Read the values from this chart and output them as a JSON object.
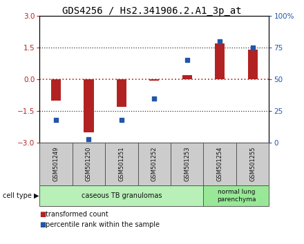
{
  "title": "GDS4256 / Hs2.341906.2.A1_3p_at",
  "samples": [
    "GSM501249",
    "GSM501250",
    "GSM501251",
    "GSM501252",
    "GSM501253",
    "GSM501254",
    "GSM501255"
  ],
  "red_bars": [
    -1.0,
    -2.5,
    -1.3,
    -0.05,
    0.2,
    1.7,
    1.4
  ],
  "blue_dots": [
    18,
    3,
    18,
    35,
    65,
    80,
    75
  ],
  "ylim_left": [
    -3,
    3
  ],
  "ylim_right": [
    0,
    100
  ],
  "yticks_left": [
    -3,
    -1.5,
    0,
    1.5,
    3
  ],
  "yticks_right": [
    0,
    25,
    50,
    75,
    100
  ],
  "ytick_labels_right": [
    "0",
    "25",
    "50",
    "75",
    "100%"
  ],
  "bar_color": "#b22222",
  "dot_color": "#2155a8",
  "hline_color": "#c0392b",
  "dotted_color": "#333333",
  "group1_label": "caseous TB granulomas",
  "group2_label": "normal lung\nparenchyma",
  "group1_count": 5,
  "group2_count": 2,
  "cell_type_label": "cell type",
  "legend_red": "transformed count",
  "legend_blue": "percentile rank within the sample",
  "bg_plot": "#ffffff",
  "bg_group1": "#b8f0b8",
  "bg_group2": "#98e898",
  "bg_xtick": "#cccccc",
  "title_fontsize": 10,
  "tick_fontsize": 7.5,
  "sample_fontsize": 6,
  "group_fontsize": 7,
  "legend_fontsize": 7
}
